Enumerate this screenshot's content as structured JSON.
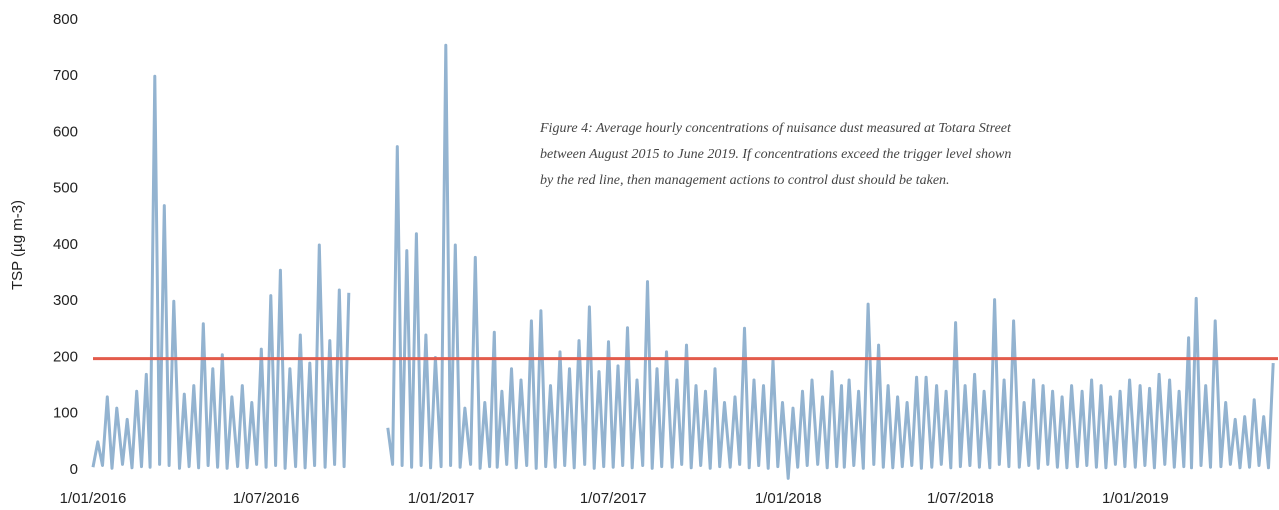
{
  "chart_data": {
    "type": "line",
    "y_label": "TSP (µg m-3)",
    "annotation": [
      "Figure 4: Average hourly concentrations of nuisance dust measured at Totara Street",
      "between August 2015 to June 2019. If concentrations exceed the trigger level shown",
      "by the red line, then management actions to control dust should be taken."
    ],
    "xlim": [
      "1/01/2016",
      "31/05/2019"
    ],
    "xticks": [
      "1/01/2016",
      "1/07/2016",
      "1/01/2017",
      "1/07/2017",
      "1/01/2018",
      "1/07/2018",
      "1/01/2019"
    ],
    "ylim": [
      0,
      800
    ],
    "yticks": [
      0,
      100,
      200,
      300,
      400,
      500,
      600,
      700,
      800
    ],
    "grid": false,
    "threshold": 198,
    "threshold_color": "#e35b4b",
    "series": [
      {
        "color": "#93b3d0",
        "x": [
          "1/01/2016",
          "6/01/2016",
          "11/01/2016",
          "16/01/2016",
          "21/01/2016",
          "26/01/2016",
          "1/02/2016",
          "6/02/2016",
          "11/02/2016",
          "16/02/2016",
          "21/02/2016",
          "26/02/2016",
          "1/03/2016",
          "6/03/2016",
          "11/03/2016",
          "16/03/2016",
          "21/03/2016",
          "26/03/2016",
          "1/04/2016",
          "6/04/2016",
          "11/04/2016",
          "16/04/2016",
          "21/04/2016",
          "26/04/2016",
          "1/05/2016",
          "6/05/2016",
          "11/05/2016",
          "16/05/2016",
          "21/05/2016",
          "26/05/2016",
          "1/06/2016",
          "6/06/2016",
          "11/06/2016",
          "16/06/2016",
          "21/06/2016",
          "26/06/2016",
          "1/07/2016",
          "6/07/2016",
          "11/07/2016",
          "16/07/2016",
          "21/07/2016",
          "26/07/2016",
          "1/08/2016",
          "6/08/2016",
          "11/08/2016",
          "16/08/2016",
          "21/08/2016",
          "26/08/2016",
          "1/09/2016",
          "6/09/2016",
          "11/09/2016",
          "16/09/2016",
          "21/09/2016",
          "26/09/2016",
          "1/10/2016",
          "6/11/2016",
          "11/11/2016",
          "16/11/2016",
          "21/11/2016",
          "26/11/2016",
          "1/12/2016",
          "6/12/2016",
          "11/12/2016",
          "16/12/2016",
          "21/12/2016",
          "26/12/2016",
          "1/01/2017",
          "6/01/2017",
          "11/01/2017",
          "16/01/2017",
          "21/01/2017",
          "26/01/2017",
          "1/02/2017",
          "6/02/2017",
          "11/02/2017",
          "16/02/2017",
          "21/02/2017",
          "26/02/2017",
          "1/03/2017",
          "6/03/2017",
          "11/03/2017",
          "16/03/2017",
          "21/03/2017",
          "26/03/2017",
          "1/04/2017",
          "6/04/2017",
          "11/04/2017",
          "16/04/2017",
          "21/04/2017",
          "26/04/2017",
          "1/05/2017",
          "6/05/2017",
          "11/05/2017",
          "16/05/2017",
          "21/05/2017",
          "26/05/2017",
          "1/06/2017",
          "6/06/2017",
          "11/06/2017",
          "16/06/2017",
          "21/06/2017",
          "26/06/2017",
          "1/07/2017",
          "6/07/2017",
          "11/07/2017",
          "16/07/2017",
          "21/07/2017",
          "26/07/2017",
          "1/08/2017",
          "6/08/2017",
          "11/08/2017",
          "16/08/2017",
          "21/08/2017",
          "26/08/2017",
          "1/09/2017",
          "6/09/2017",
          "11/09/2017",
          "16/09/2017",
          "21/09/2017",
          "26/09/2017",
          "1/10/2017",
          "6/10/2017",
          "11/10/2017",
          "16/10/2017",
          "21/10/2017",
          "26/10/2017",
          "1/11/2017",
          "6/11/2017",
          "11/11/2017",
          "16/11/2017",
          "21/11/2017",
          "26/11/2017",
          "1/12/2017",
          "6/12/2017",
          "11/12/2017",
          "16/12/2017",
          "21/12/2017",
          "26/12/2017",
          "1/01/2018",
          "6/01/2018",
          "11/01/2018",
          "16/01/2018",
          "21/01/2018",
          "26/01/2018",
          "1/02/2018",
          "6/02/2018",
          "11/02/2018",
          "16/02/2018",
          "21/02/2018",
          "26/02/2018",
          "1/03/2018",
          "6/03/2018",
          "11/03/2018",
          "16/03/2018",
          "21/03/2018",
          "26/03/2018",
          "1/04/2018",
          "6/04/2018",
          "11/04/2018",
          "16/04/2018",
          "21/04/2018",
          "26/04/2018",
          "1/05/2018",
          "6/05/2018",
          "11/05/2018",
          "16/05/2018",
          "21/05/2018",
          "26/05/2018",
          "1/06/2018",
          "6/06/2018",
          "11/06/2018",
          "16/06/2018",
          "21/06/2018",
          "26/06/2018",
          "1/07/2018",
          "6/07/2018",
          "11/07/2018",
          "16/07/2018",
          "21/07/2018",
          "26/07/2018",
          "1/08/2018",
          "6/08/2018",
          "11/08/2018",
          "16/08/2018",
          "21/08/2018",
          "26/08/2018",
          "1/09/2018",
          "6/09/2018",
          "11/09/2018",
          "16/09/2018",
          "21/09/2018",
          "26/09/2018",
          "1/10/2018",
          "6/10/2018",
          "11/10/2018",
          "16/10/2018",
          "21/10/2018",
          "26/10/2018",
          "1/11/2018",
          "6/11/2018",
          "11/11/2018",
          "16/11/2018",
          "21/11/2018",
          "26/11/2018",
          "1/12/2018",
          "6/12/2018",
          "11/12/2018",
          "16/12/2018",
          "21/12/2018",
          "26/12/2018",
          "1/01/2019",
          "6/01/2019",
          "11/01/2019",
          "16/01/2019",
          "21/01/2019",
          "26/01/2019",
          "1/02/2019",
          "6/02/2019",
          "11/02/2019",
          "16/02/2019",
          "21/02/2019",
          "26/02/2019",
          "1/03/2019",
          "6/03/2019",
          "11/03/2019",
          "16/03/2019",
          "21/03/2019",
          "26/03/2019",
          "1/04/2019",
          "6/04/2019",
          "11/04/2019",
          "16/04/2019",
          "21/04/2019",
          "26/04/2019",
          "1/05/2019",
          "6/05/2019",
          "11/05/2019",
          "16/05/2019",
          "21/05/2019",
          "26/05/2019"
        ],
        "values": [
          5,
          50,
          8,
          130,
          3,
          110,
          10,
          90,
          4,
          140,
          6,
          170,
          5,
          700,
          10,
          470,
          8,
          300,
          3,
          135,
          6,
          150,
          4,
          260,
          8,
          180,
          5,
          205,
          3,
          130,
          6,
          150,
          4,
          120,
          10,
          215,
          5,
          310,
          8,
          355,
          3,
          180,
          6,
          240,
          4,
          190,
          8,
          400,
          5,
          230,
          10,
          320,
          6,
          315,
          null,
          75,
          10,
          575,
          8,
          390,
          5,
          420,
          8,
          240,
          4,
          200,
          6,
          755,
          8,
          400,
          5,
          110,
          10,
          378,
          3,
          120,
          6,
          245,
          5,
          140,
          10,
          180,
          4,
          160,
          8,
          265,
          3,
          283,
          6,
          150,
          5,
          210,
          8,
          180,
          4,
          230,
          10,
          290,
          3,
          175,
          6,
          228,
          5,
          185,
          8,
          253,
          4,
          160,
          8,
          335,
          3,
          180,
          6,
          210,
          5,
          160,
          10,
          222,
          4,
          150,
          8,
          140,
          3,
          180,
          6,
          120,
          5,
          130,
          10,
          252,
          4,
          160,
          8,
          150,
          3,
          195,
          6,
          120,
          -15,
          110,
          5,
          140,
          8,
          160,
          10,
          130,
          4,
          175,
          6,
          150,
          5,
          160,
          8,
          140,
          3,
          295,
          10,
          222,
          5,
          150,
          4,
          130,
          6,
          120,
          8,
          165,
          3,
          165,
          5,
          150,
          10,
          140,
          4,
          262,
          6,
          150,
          8,
          170,
          5,
          140,
          4,
          303,
          10,
          160,
          6,
          265,
          5,
          120,
          8,
          160,
          3,
          150,
          10,
          140,
          5,
          130,
          4,
          150,
          6,
          140,
          8,
          160,
          5,
          150,
          4,
          130,
          10,
          140,
          6,
          160,
          5,
          150,
          8,
          145,
          4,
          170,
          10,
          160,
          5,
          140,
          6,
          235,
          4,
          305,
          8,
          150,
          5,
          265,
          6,
          120,
          10,
          90,
          4,
          95,
          5,
          125,
          8,
          95,
          4,
          190
        ]
      }
    ]
  }
}
